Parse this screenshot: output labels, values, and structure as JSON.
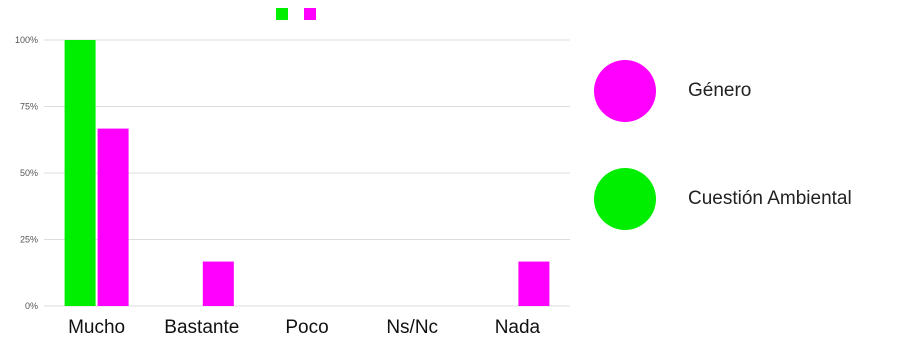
{
  "chart_data": {
    "type": "bar",
    "categories": [
      "Mucho",
      "Bastante",
      "Poco",
      "Ns/Nc",
      "Nada"
    ],
    "series": [
      {
        "name": "Cuestión Ambiental",
        "color": "#00ee00",
        "values": [
          100,
          0,
          0,
          0,
          0
        ]
      },
      {
        "name": "Género",
        "color": "#ff00ff",
        "values": [
          66.7,
          16.7,
          0,
          0,
          16.7
        ]
      }
    ],
    "y_ticks": [
      "0%",
      "25%",
      "50%",
      "75%",
      "100%"
    ],
    "ylim": [
      0,
      100
    ],
    "grid": true,
    "legend": [
      {
        "label": "Género",
        "color": "#ff00ff"
      },
      {
        "label": "Cuestión Ambiental",
        "color": "#00ee00"
      }
    ],
    "legend_position": "right"
  }
}
